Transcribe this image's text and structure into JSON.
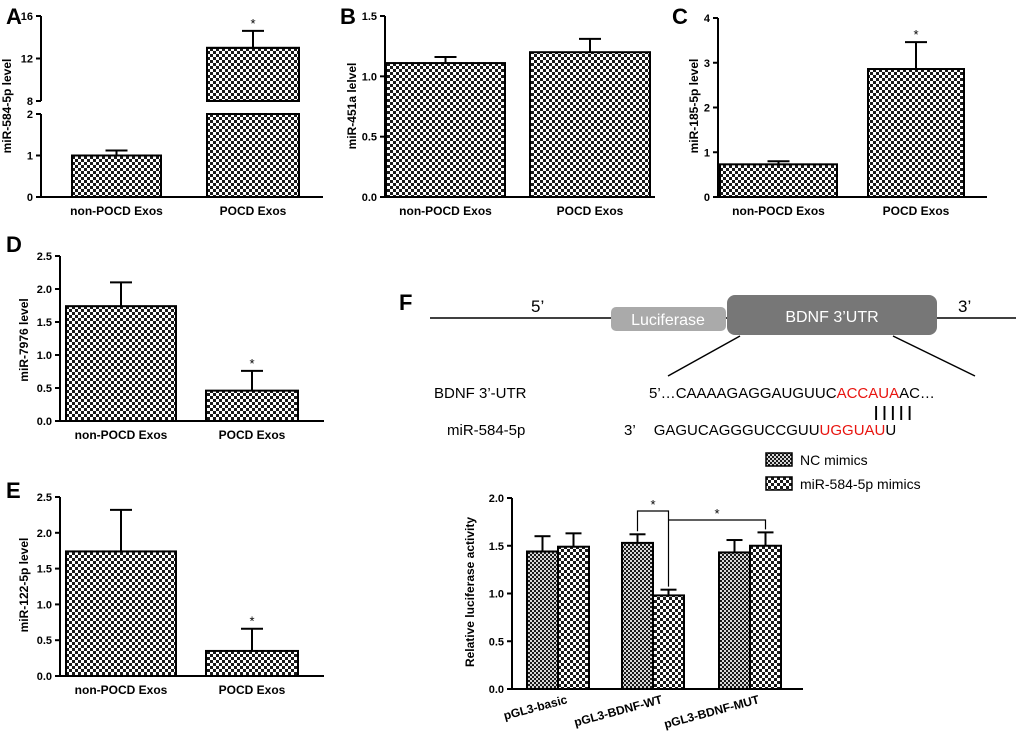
{
  "chart_data": [
    {
      "panel": "A",
      "type": "bar",
      "categories": [
        "non-POCD Exos",
        "POCD Exos"
      ],
      "values": [
        1.0,
        13.0
      ],
      "errors": [
        0.12,
        1.6
      ],
      "significance": [
        "",
        "*"
      ],
      "ylabel": "miR-584-5p level",
      "axis_break": {
        "lower": [
          0,
          2
        ],
        "upper": [
          8,
          16
        ]
      },
      "yticks_lower": [
        "0",
        "1",
        "2"
      ],
      "yticks_upper": [
        "8",
        "12",
        "16"
      ],
      "pattern": "checker"
    },
    {
      "panel": "B",
      "type": "bar",
      "categories": [
        "non-POCD Exos",
        "POCD Exos"
      ],
      "values": [
        1.11,
        1.2
      ],
      "errors": [
        0.05,
        0.11
      ],
      "significance": [
        "",
        ""
      ],
      "ylabel": "miR-451a lelvel",
      "ylim": [
        0,
        1.5
      ],
      "yticks": [
        "0.0",
        "0.5",
        "1.0",
        "1.5"
      ],
      "pattern": "checker"
    },
    {
      "panel": "C",
      "type": "bar",
      "categories": [
        "non-POCD Exos",
        "POCD Exos"
      ],
      "values": [
        0.73,
        2.86
      ],
      "errors": [
        0.07,
        0.6
      ],
      "significance": [
        "",
        "*"
      ],
      "ylabel": "miR-185-5p level",
      "ylim": [
        0,
        4
      ],
      "yticks": [
        "0",
        "1",
        "2",
        "3",
        "4"
      ],
      "pattern": "checker"
    },
    {
      "panel": "D",
      "type": "bar",
      "categories": [
        "non-POCD Exos",
        "POCD Exos"
      ],
      "values": [
        1.74,
        0.46
      ],
      "errors": [
        0.36,
        0.3
      ],
      "significance": [
        "",
        "*"
      ],
      "ylabel": "miR-7976 level",
      "ylim": [
        0,
        2.5
      ],
      "yticks": [
        "0.0",
        "0.5",
        "1.0",
        "1.5",
        "2.0",
        "2.5"
      ],
      "pattern": "checker"
    },
    {
      "panel": "E",
      "type": "bar",
      "categories": [
        "non-POCD Exos",
        "POCD Exos"
      ],
      "values": [
        1.74,
        0.35
      ],
      "errors": [
        0.58,
        0.31
      ],
      "significance": [
        "",
        "*"
      ],
      "ylabel": "miR-122-5p level",
      "ylim": [
        0,
        2.5
      ],
      "yticks": [
        "0.0",
        "0.5",
        "1.0",
        "1.5",
        "2.0",
        "2.5"
      ],
      "pattern": "checker"
    },
    {
      "panel": "F",
      "type": "bar",
      "categories": [
        "pGL3-basic",
        "pGL3-BDNF-WT",
        "pGL3-BDNF-MUT"
      ],
      "series": [
        {
          "name": "NC mimics",
          "values": [
            1.44,
            1.53,
            1.43
          ],
          "errors": [
            0.16,
            0.09,
            0.13
          ],
          "pattern": "dense"
        },
        {
          "name": "miR-584-5p mimics",
          "values": [
            1.49,
            0.98,
            1.5
          ],
          "errors": [
            0.14,
            0.06,
            0.14
          ],
          "pattern": "checker"
        }
      ],
      "ylabel": "Relative luciferase activity",
      "ylim": [
        0,
        2.0
      ],
      "yticks": [
        "0.0",
        "0.5",
        "1.0",
        "1.5",
        "2.0"
      ],
      "legend": "top",
      "brackets": [
        "*",
        "*"
      ]
    }
  ],
  "diagram": {
    "panel": "F",
    "five_prime": "5’",
    "three_prime": "3’",
    "luciferase": "Luciferase",
    "utr_box": "BDNF 3’UTR",
    "row1_label": "BDNF  3’-UTR",
    "row1_prefix": "5’…",
    "row1_black": "CAAAAGAGGAUGUUC",
    "row1_red": "ACCAUA",
    "row1_tail": "AC…",
    "pairing": "| | | | |",
    "row2_label": "miR-584-5p",
    "row2_prefix": "3’",
    "row2_black": "GAGUCAGGGUCCGUU",
    "row2_red": "UGGUAU",
    "row2_tail": "U"
  }
}
